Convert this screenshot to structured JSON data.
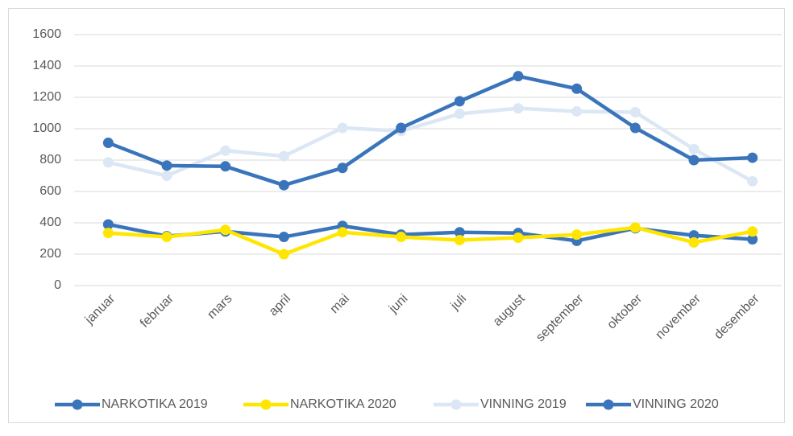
{
  "chart_data": {
    "type": "line",
    "categories": [
      "januar",
      "februar",
      "mars",
      "april",
      "mai",
      "juni",
      "juli",
      "august",
      "september",
      "oktober",
      "november",
      "desember"
    ],
    "series": [
      {
        "name": "NARKOTIKA 2019",
        "color": "#3a75bb",
        "values": [
          390,
          315,
          345,
          310,
          380,
          325,
          340,
          335,
          285,
          365,
          320,
          295
        ]
      },
      {
        "name": "NARKOTIKA 2020",
        "color": "#ffe600",
        "values": [
          335,
          310,
          355,
          200,
          340,
          310,
          290,
          305,
          325,
          370,
          275,
          345
        ]
      },
      {
        "name": "VINNING 2019",
        "color": "#dce7f5",
        "values": [
          785,
          700,
          860,
          825,
          1005,
          985,
          1095,
          1130,
          1110,
          1105,
          870,
          665
        ]
      },
      {
        "name": "VINNING 2020",
        "color": "#3a75bb",
        "values": [
          910,
          765,
          760,
          640,
          750,
          1005,
          1175,
          1335,
          1255,
          1005,
          800,
          815
        ]
      }
    ],
    "ylim": [
      0,
      1600
    ],
    "yticks": [
      0,
      200,
      400,
      600,
      800,
      1000,
      1200,
      1400,
      1600
    ],
    "grid": true,
    "legend": "bottom"
  }
}
